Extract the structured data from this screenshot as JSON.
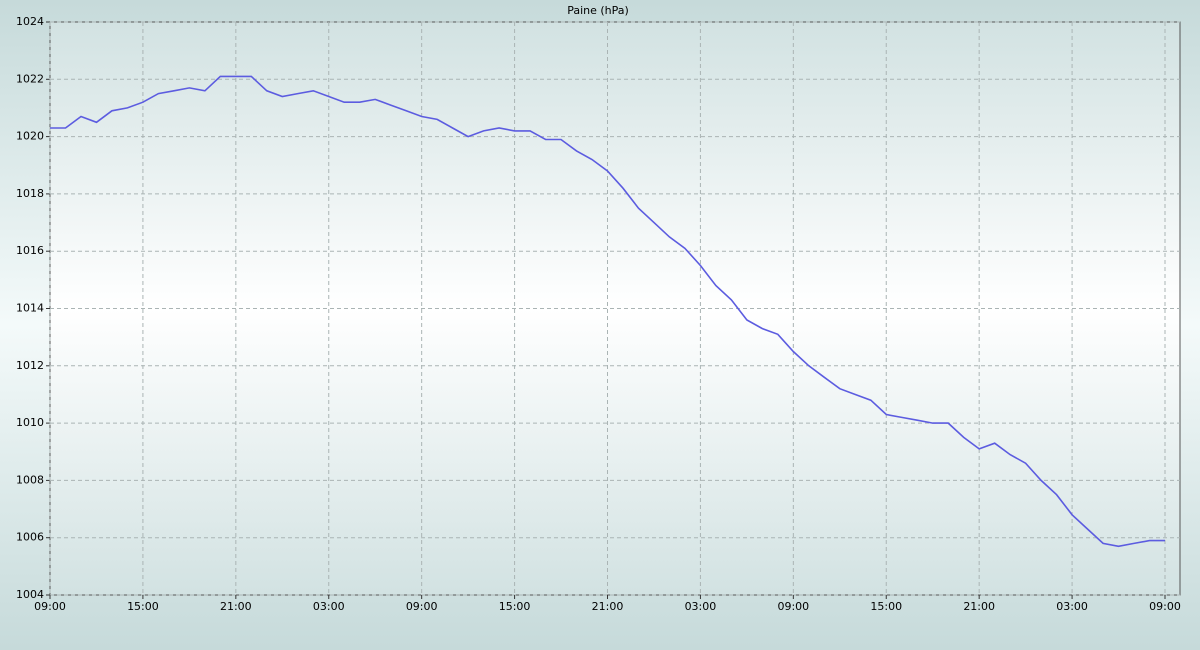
{
  "chart_data": {
    "type": "line",
    "title": "Paine (hPa)",
    "x": [
      0,
      1,
      2,
      3,
      4,
      5,
      6,
      7,
      8,
      9,
      10,
      11,
      12,
      13,
      14,
      15,
      16,
      17,
      18,
      19,
      20,
      21,
      22,
      23,
      24,
      25,
      26,
      27,
      28,
      29,
      30,
      31,
      32,
      33,
      34,
      35,
      36,
      37,
      38,
      39,
      40,
      41,
      42,
      43,
      44,
      45,
      46,
      47,
      48,
      49,
      50,
      51,
      52,
      53,
      54,
      55,
      56,
      57,
      58,
      59,
      60,
      61,
      62,
      63,
      64,
      65,
      66,
      67,
      68,
      69,
      70,
      71,
      72
    ],
    "series": [
      {
        "name": "Paine",
        "color": "#5c5ce0",
        "values": [
          1020.3,
          1020.3,
          1020.7,
          1020.5,
          1020.9,
          1021.0,
          1021.2,
          1021.5,
          1021.6,
          1021.7,
          1021.6,
          1022.1,
          1022.1,
          1022.1,
          1021.6,
          1021.4,
          1021.5,
          1021.6,
          1021.4,
          1021.2,
          1021.2,
          1021.3,
          1021.1,
          1020.9,
          1020.7,
          1020.6,
          1020.3,
          1020.0,
          1020.2,
          1020.3,
          1020.2,
          1020.2,
          1019.9,
          1019.9,
          1019.5,
          1019.2,
          1018.8,
          1018.2,
          1017.5,
          1017.0,
          1016.5,
          1016.1,
          1015.5,
          1014.8,
          1014.3,
          1013.6,
          1013.3,
          1013.1,
          1012.5,
          1012.0,
          1011.6,
          1011.2,
          1011.0,
          1010.8,
          1010.3,
          1010.2,
          1010.1,
          1010.0,
          1010.0,
          1009.5,
          1009.1,
          1009.3,
          1008.9,
          1008.6,
          1008.0,
          1007.5,
          1006.8,
          1006.3,
          1005.8,
          1005.7,
          1005.8,
          1005.9,
          1005.9
        ]
      }
    ],
    "xlim": [
      0,
      72
    ],
    "xticks": [
      {
        "value": 0,
        "label": "09:00"
      },
      {
        "value": 6,
        "label": "15:00"
      },
      {
        "value": 12,
        "label": "21:00"
      },
      {
        "value": 18,
        "label": "03:00"
      },
      {
        "value": 24,
        "label": "09:00"
      },
      {
        "value": 30,
        "label": "15:00"
      },
      {
        "value": 36,
        "label": "21:00"
      },
      {
        "value": 42,
        "label": "03:00"
      },
      {
        "value": 48,
        "label": "09:00"
      },
      {
        "value": 54,
        "label": "15:00"
      },
      {
        "value": 60,
        "label": "21:00"
      },
      {
        "value": 66,
        "label": "03:00"
      },
      {
        "value": 72,
        "label": "09:00"
      }
    ],
    "ylim": [
      1004,
      1024
    ],
    "yticks": [
      1004,
      1006,
      1008,
      1010,
      1012,
      1014,
      1016,
      1018,
      1020,
      1022,
      1024
    ],
    "grid": true
  }
}
